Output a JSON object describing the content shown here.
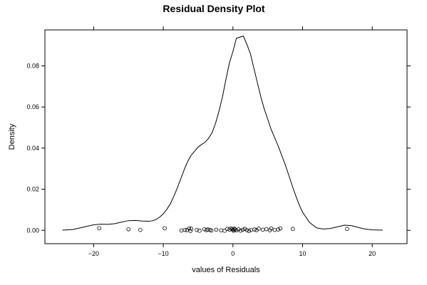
{
  "chart_data": {
    "type": "line",
    "title": "Residual Density Plot",
    "xlabel": "values of Residuals",
    "ylabel": "Density",
    "xlim": [
      -27,
      25
    ],
    "ylim": [
      -0.0065,
      0.0975
    ],
    "x_ticks": [
      -20,
      -10,
      0,
      10,
      20
    ],
    "y_ticks": [
      0.0,
      0.02,
      0.04,
      0.06,
      0.08
    ],
    "x_tick_labels": [
      "−20",
      "−10",
      "0",
      "10",
      "20"
    ],
    "y_tick_labels": [
      "0.00",
      "0.02",
      "0.04",
      "0.06",
      "0.08"
    ],
    "grid": false,
    "series": [
      {
        "kind": "density-curve",
        "x": [
          -24.5,
          -23.0,
          -21.5,
          -20.0,
          -19.0,
          -18.0,
          -17.0,
          -16.0,
          -15.0,
          -14.0,
          -13.0,
          -12.0,
          -11.5,
          -11.0,
          -10.5,
          -10.0,
          -9.5,
          -9.0,
          -8.5,
          -8.0,
          -7.5,
          -7.0,
          -6.5,
          -6.0,
          -5.5,
          -5.0,
          -4.5,
          -4.0,
          -3.5,
          -3.0,
          -2.5,
          -2.0,
          -1.5,
          -1.0,
          -0.5,
          0.0,
          0.5,
          1.0,
          1.5,
          2.0,
          2.5,
          3.0,
          3.5,
          4.0,
          4.5,
          5.0,
          5.5,
          6.0,
          6.5,
          7.0,
          7.5,
          8.0,
          8.5,
          9.0,
          9.5,
          10.0,
          11.0,
          12.0,
          13.0,
          14.0,
          15.0,
          16.0,
          17.0,
          18.0,
          19.0,
          20.0,
          21.5
        ],
        "y": [
          0.0001,
          0.0004,
          0.0015,
          0.0027,
          0.003,
          0.0029,
          0.0032,
          0.004,
          0.0047,
          0.0048,
          0.0045,
          0.0044,
          0.0047,
          0.0053,
          0.0065,
          0.008,
          0.0102,
          0.0128,
          0.0165,
          0.0205,
          0.025,
          0.0295,
          0.0335,
          0.0365,
          0.0385,
          0.0405,
          0.0418,
          0.0428,
          0.0448,
          0.0475,
          0.052,
          0.058,
          0.065,
          0.0735,
          0.0815,
          0.087,
          0.0935,
          0.094,
          0.0945,
          0.0905,
          0.086,
          0.079,
          0.072,
          0.065,
          0.059,
          0.054,
          0.049,
          0.045,
          0.041,
          0.0365,
          0.032,
          0.027,
          0.0218,
          0.017,
          0.0125,
          0.0088,
          0.0038,
          0.0012,
          0.0006,
          0.0009,
          0.0017,
          0.0025,
          0.0023,
          0.0014,
          0.0006,
          0.0002,
          0.0001
        ]
      },
      {
        "kind": "rug-points",
        "x": [
          -19.2,
          -15.0,
          -13.3,
          -9.8,
          -7.4,
          -6.9,
          -6.6,
          -6.3,
          -6.1,
          -6.0,
          -5.2,
          -4.8,
          -4.1,
          -3.8,
          -3.6,
          -3.3,
          -3.1,
          -2.4,
          -1.7,
          -1.2,
          -0.8,
          -0.5,
          -0.3,
          -0.1,
          0.0,
          0.1,
          0.2,
          0.3,
          0.5,
          0.8,
          1.1,
          1.4,
          1.7,
          2.0,
          2.3,
          2.6,
          3.1,
          3.4,
          3.7,
          4.3,
          4.8,
          5.3,
          5.5,
          6.0,
          6.5,
          6.8,
          8.6,
          16.4
        ],
        "y": [
          0.001,
          0.0005,
          0.0002,
          0.001,
          -0.0001,
          0.0002,
          0.0001,
          0.0009,
          -0.0003,
          0.0008,
          0.0002,
          -0.0002,
          0.0005,
          0.0001,
          0.0004,
          0.0002,
          -0.0001,
          0.0003,
          0.0,
          -0.0002,
          0.0007,
          0.0003,
          0.0009,
          0.0006,
          0.0002,
          -0.0002,
          0.0008,
          0.0004,
          0.0,
          0.0005,
          -0.0002,
          0.0003,
          0.0007,
          0.0001,
          -0.0003,
          0.0002,
          0.0004,
          0.0001,
          0.0008,
          0.0003,
          0.0006,
          0.0,
          0.0009,
          0.0002,
          0.0004,
          0.0009,
          0.0007,
          0.0007
        ]
      }
    ]
  }
}
